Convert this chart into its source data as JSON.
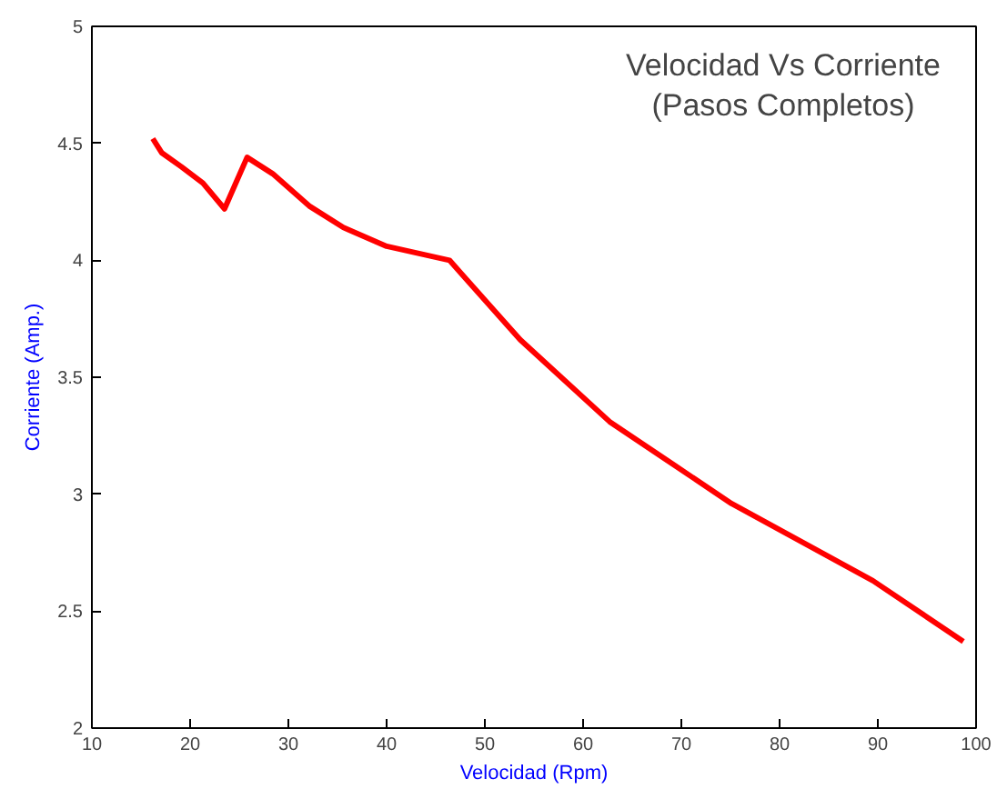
{
  "chart_data": {
    "type": "line",
    "title": "Velocidad Vs Corriente\n(Pasos Completos)",
    "xlabel": "Velocidad (Rpm)",
    "ylabel": "Corriente (Amp.)",
    "x": [
      16.2,
      17.1,
      19.1,
      21.3,
      23.5,
      25.8,
      28.4,
      32.2,
      35.6,
      40.0,
      46.4,
      53.6,
      62.7,
      75.1,
      89.5,
      98.7
    ],
    "series": [
      {
        "color": "#ff0000",
        "values": [
          4.52,
          4.46,
          4.4,
          4.33,
          4.22,
          4.44,
          4.37,
          4.23,
          4.14,
          4.06,
          4.0,
          3.66,
          3.31,
          2.96,
          2.63,
          2.37
        ]
      }
    ],
    "xlim": [
      10,
      100
    ],
    "ylim": [
      2,
      5
    ],
    "xticks": [
      10,
      20,
      30,
      40,
      50,
      60,
      70,
      80,
      90,
      100
    ],
    "yticks": [
      2,
      2.5,
      3,
      3.5,
      4,
      4.5,
      5
    ],
    "grid": false,
    "marker": "none",
    "line_style": "solid"
  }
}
